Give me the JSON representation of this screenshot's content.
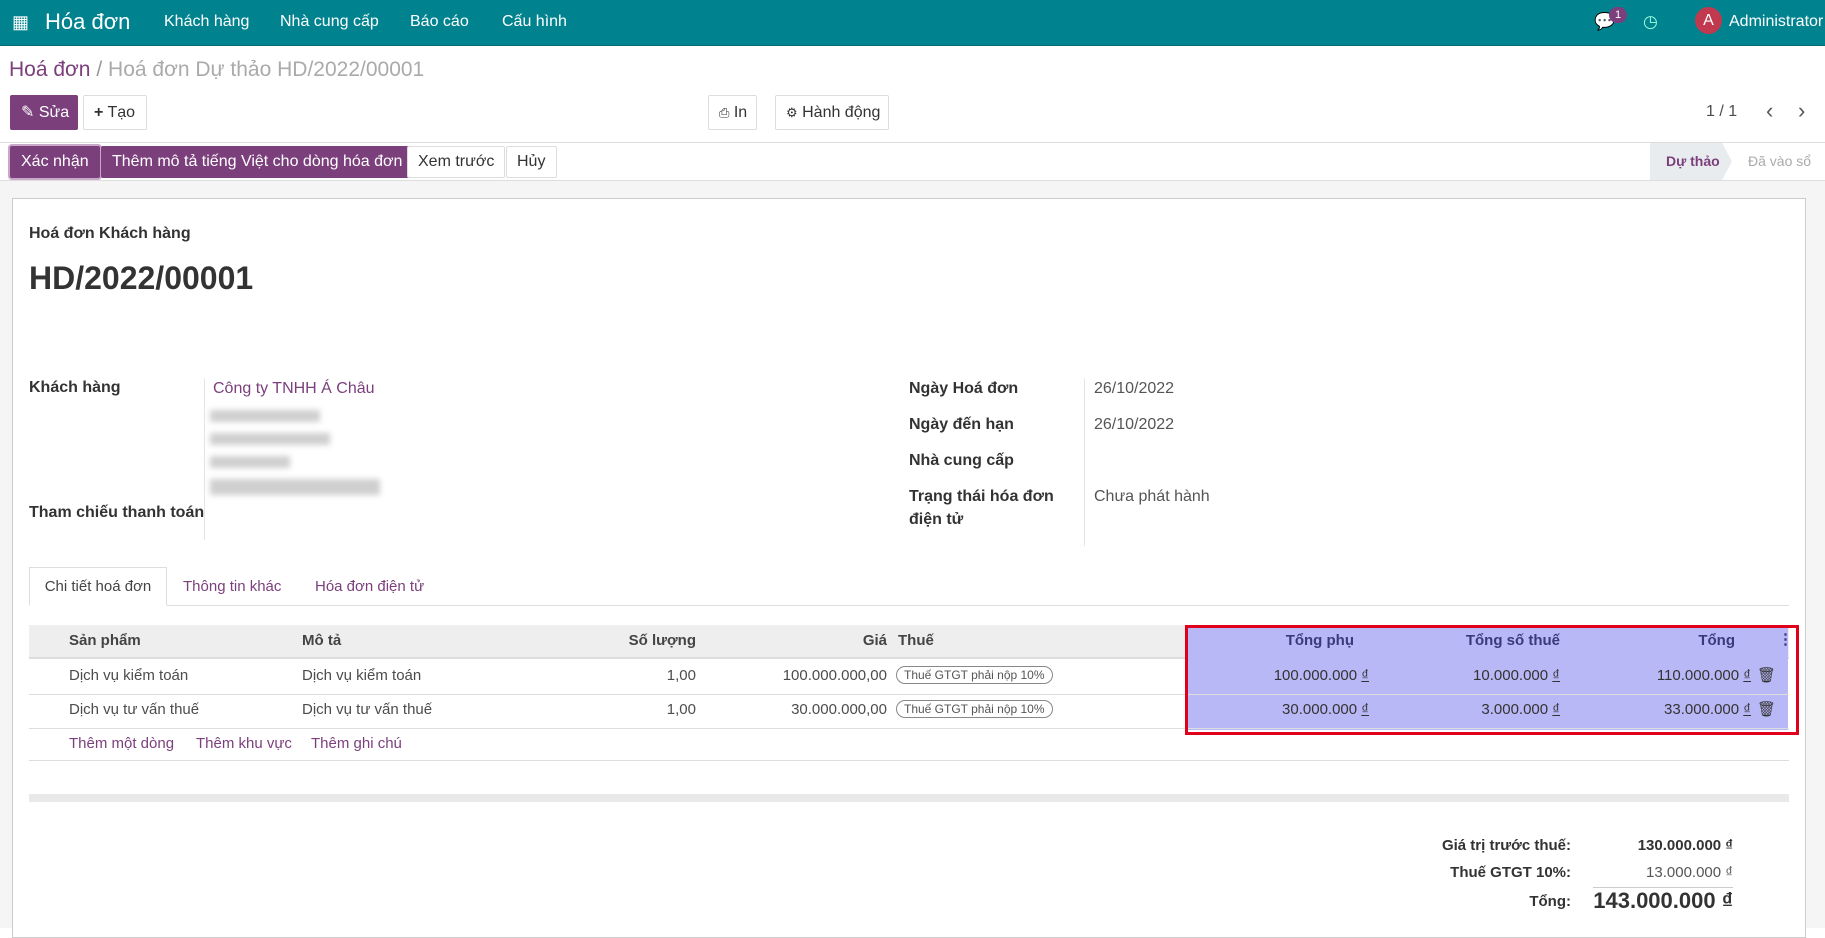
{
  "app": {
    "title": "Hóa đơn",
    "menu": [
      "Khách hàng",
      "Nhà cung cấp",
      "Báo cáo",
      "Cấu hình"
    ],
    "chat_count": "1",
    "user_initial": "A",
    "user": "Administrator"
  },
  "breadcrumb": {
    "parent": "Hoá đơn",
    "sep": "/",
    "current": "Hoá đơn Dự thảo HD/2022/00001"
  },
  "toolbar": {
    "edit": "Sửa",
    "create": "Tạo",
    "print": "In",
    "action": "Hành động",
    "pager": "1 / 1"
  },
  "status_buttons": {
    "confirm": "Xác nhận",
    "add_desc": "Thêm mô tả tiếng Việt cho dòng hóa đơn",
    "preview": "Xem trước",
    "cancel": "Hủy"
  },
  "status_bar": {
    "stages": [
      "Dự thảo",
      "Đã vào sổ"
    ],
    "active": "Dự thảo"
  },
  "form": {
    "type": "Hoá đơn Khách hàng",
    "number": "HD/2022/00001",
    "customer_label": "Khách hàng",
    "customer": "Công ty TNHH Á Châu",
    "payment_ref_label": "Tham chiếu thanh toán",
    "invoice_date_label": "Ngày Hoá đơn",
    "invoice_date": "26/10/2022",
    "due_date_label": "Ngày đến hạn",
    "due_date": "26/10/2022",
    "supplier_label": "Nhà cung cấp",
    "einvoice_status_label_1": "Trạng thái hóa đơn",
    "einvoice_status_label_2": "điện tử",
    "einvoice_status": "Chưa phát hành"
  },
  "tabs": [
    "Chi tiết hoá đơn",
    "Thông tin khác",
    "Hóa đơn điện tử"
  ],
  "table": {
    "headers": [
      "Sản phẩm",
      "Mô tả",
      "Số lượng",
      "Giá",
      "Thuế",
      "Tổng phụ",
      "Tổng số thuế",
      "Tổng"
    ],
    "rows": [
      {
        "product": "Dịch vụ kiểm toán",
        "desc": "Dịch vụ kiểm toán",
        "qty": "1,00",
        "price": "100.000.000,00",
        "tax": "Thuế GTGT phải nộp 10%",
        "subtotal": "100.000.000",
        "tax_amount": "10.000.000",
        "total": "110.000.000"
      },
      {
        "product": "Dịch vụ tư vấn thuế",
        "desc": "Dịch vụ tư vấn thuế",
        "qty": "1,00",
        "price": "30.000.000,00",
        "tax": "Thuế GTGT phải nộp 10%",
        "subtotal": "30.000.000",
        "tax_amount": "3.000.000",
        "total": "33.000.000"
      }
    ],
    "currency": "₫",
    "add_line": "Thêm một dòng",
    "add_section": "Thêm khu vực",
    "add_note": "Thêm ghi chú"
  },
  "totals": {
    "untaxed_label": "Giá trị trước thuế:",
    "untaxed": "130.000.000 ₫",
    "vat_label": "Thuế GTGT 10%:",
    "vat": "13.000.000 ₫",
    "total_label": "Tổng:",
    "total": "143.000.000 ₫"
  },
  "colors": {
    "topbar": "#01838f",
    "primary": "#7b3f7c",
    "highlight": "#b3b3f5",
    "highlight_border": "#e0001b"
  }
}
